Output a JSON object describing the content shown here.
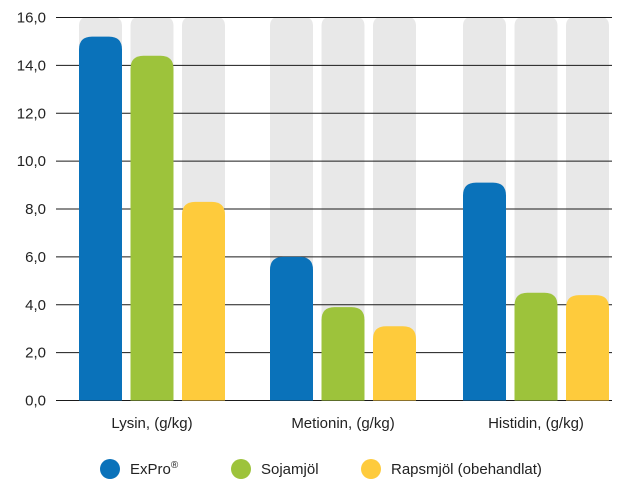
{
  "chart_data": {
    "type": "bar",
    "categories": [
      "Lysin, (g/kg)",
      "Metionin, (g/kg)",
      "Histidin, (g/kg)"
    ],
    "series": [
      {
        "name": "ExPro",
        "name_sup": "®",
        "color": "#0a72ba",
        "values": [
          15.2,
          6.0,
          9.1
        ]
      },
      {
        "name": "Sojamjöl",
        "color": "#9dc33b",
        "values": [
          14.4,
          3.9,
          4.5
        ]
      },
      {
        "name": "Rapsmjöl (obehandlat)",
        "color": "#fecb3c",
        "values": [
          8.3,
          3.1,
          4.4
        ]
      }
    ],
    "y_ticks": [
      "0,0",
      "2,0",
      "4,0",
      "6,0",
      "8,0",
      "10,0",
      "12,0",
      "14,0",
      "16,0"
    ],
    "ylim": [
      0,
      16
    ],
    "background_bar_color": "#e8e8e8",
    "grid": true,
    "legend_position": "bottom"
  }
}
